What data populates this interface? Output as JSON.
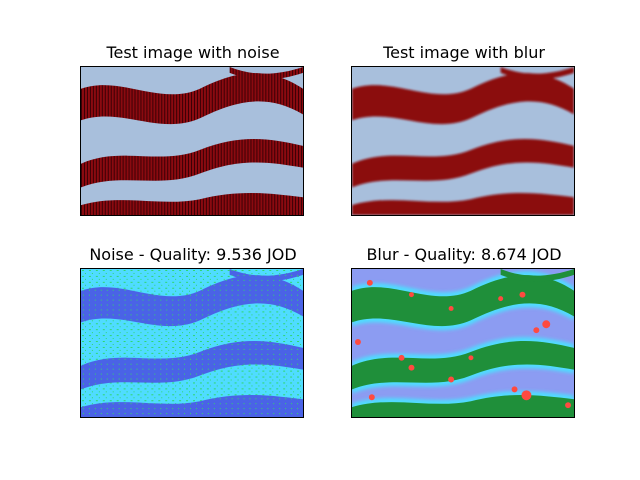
{
  "figure": {
    "panels": [
      {
        "title": "Test image with noise",
        "kind": "photo-noise"
      },
      {
        "title": "Test image with blur",
        "kind": "photo-blur"
      },
      {
        "title": "Noise - Quality: 9.536 JOD",
        "kind": "heatmap-noise"
      },
      {
        "title": "Blur - Quality: 8.674 JOD",
        "kind": "heatmap-blur"
      }
    ]
  },
  "colors": {
    "sky": "#a8bfdc",
    "stripe_red": "#8b0a10",
    "stripe_dark": "#3a0005",
    "heat_bg": "#4fdcff",
    "heat_band": "#4a63e6",
    "heat_green": "#2fd66a",
    "heat_red": "#ff4a40",
    "blur_bg": "#8c9cf2",
    "blur_band": "#1f8f3a"
  }
}
